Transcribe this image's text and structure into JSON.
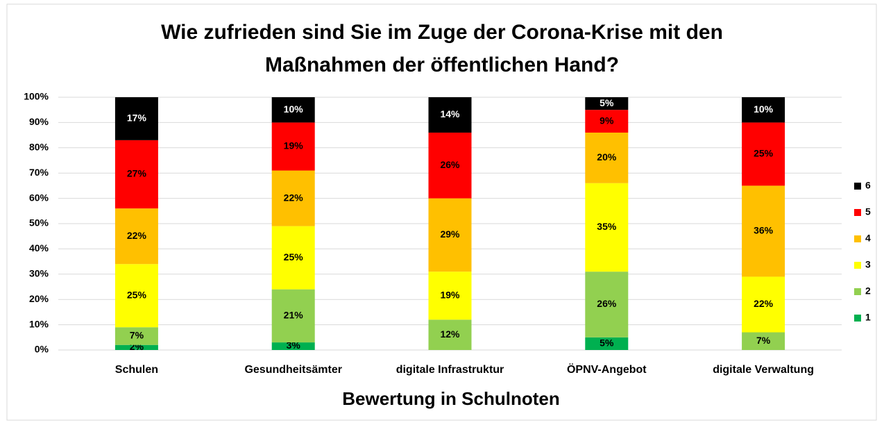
{
  "chart_data": {
    "type": "stacked_bar",
    "title": [
      "Wie zufrieden sind Sie im Zuge der Corona-Krise mit den",
      "Maßnahmen der öffentlichen Hand?"
    ],
    "x_label": "Bewertung in Schulnoten",
    "categories": [
      "Schulen",
      "Gesundheitsämter",
      "digitale Infrastruktur",
      "ÖPNV-Angebot",
      "digitale Verwaltung"
    ],
    "series": [
      {
        "name": "1",
        "color": "#00b050",
        "values": [
          2,
          3,
          null,
          5,
          null
        ],
        "value_labels": [
          "2%",
          "3%",
          null,
          "5%",
          null
        ]
      },
      {
        "name": "2",
        "color": "#92d050",
        "values": [
          7,
          21,
          12,
          26,
          7
        ],
        "value_labels": [
          "7%",
          "21%",
          "12%",
          "26%",
          "7%"
        ]
      },
      {
        "name": "3",
        "color": "#ffff00",
        "values": [
          25,
          25,
          19,
          35,
          22
        ],
        "value_labels": [
          "25%",
          "25%",
          "19%",
          "35%",
          "22%"
        ]
      },
      {
        "name": "4",
        "color": "#ffc000",
        "values": [
          22,
          22,
          29,
          20,
          36
        ],
        "value_labels": [
          "22%",
          "22%",
          "29%",
          "20%",
          "36%"
        ]
      },
      {
        "name": "5",
        "color": "#ff0000",
        "values": [
          27,
          19,
          26,
          9,
          25
        ],
        "value_labels": [
          "27%",
          "19%",
          "26%",
          "9%",
          "25%"
        ]
      },
      {
        "name": "6",
        "color": "#000000",
        "values": [
          17,
          10,
          14,
          5,
          10
        ],
        "value_labels": [
          "17%",
          "10%",
          "14%",
          "5%",
          "10%"
        ]
      }
    ],
    "ylim": [
      0,
      100
    ],
    "yticks": [
      {
        "value": 0,
        "label": "0%"
      },
      {
        "value": 10,
        "label": "10%"
      },
      {
        "value": 20,
        "label": "20%"
      },
      {
        "value": 30,
        "label": "30%"
      },
      {
        "value": 40,
        "label": "40%"
      },
      {
        "value": 50,
        "label": "50%"
      },
      {
        "value": 60,
        "label": "60%"
      },
      {
        "value": 70,
        "label": "70%"
      },
      {
        "value": 80,
        "label": "80%"
      },
      {
        "value": 90,
        "label": "90%"
      },
      {
        "value": 100,
        "label": "100%"
      }
    ],
    "grid": true,
    "legend": "right"
  }
}
